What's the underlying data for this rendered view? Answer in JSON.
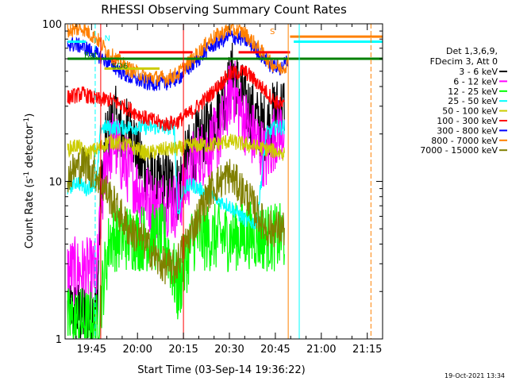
{
  "chart_data": {
    "type": "line",
    "title": "RHESSI Observing Summary Count Rates",
    "xlabel": "Start Time (03-Sep-14 19:36:22)",
    "ylabel_parts": [
      "Count Rate (s",
      "-1",
      " detector",
      "-1",
      ")"
    ],
    "y_scale": "log",
    "ylim": [
      1,
      100
    ],
    "y_tick_labels": [
      "1",
      "10",
      "100"
    ],
    "x_range_minutes": [
      "19:36:22",
      "21:20:00"
    ],
    "x_tick_labels": [
      "19:45",
      "20:00",
      "20:15",
      "20:30",
      "20:45",
      "21:00",
      "21:15"
    ],
    "legend": {
      "header": [
        "Det 1,3,6,9,",
        "FDecim 3, Att 0"
      ],
      "entries": [
        {
          "name": "3 - 6 keV",
          "color": "#000000"
        },
        {
          "name": "6 - 12 keV",
          "color": "#ff00ff"
        },
        {
          "name": "12 - 25 keV",
          "color": "#00ff00"
        },
        {
          "name": "25 - 50 keV",
          "color": "#00ffff"
        },
        {
          "name": "50 - 100 keV",
          "color": "#cccc00"
        },
        {
          "name": "100 - 300 keV",
          "color": "#ff0000"
        },
        {
          "name": "300 - 800 keV",
          "color": "#0000ff"
        },
        {
          "name": "800 - 7000 keV",
          "color": "#ff8000"
        },
        {
          "name": "7000 - 15000 keV",
          "color": "#808000"
        }
      ]
    },
    "series": [
      {
        "name": "3 - 6 keV",
        "color": "#000000",
        "points": [
          [
            19.62,
            1.5
          ],
          [
            19.72,
            1.4
          ],
          [
            19.78,
            1.6
          ],
          [
            19.8,
            8
          ],
          [
            19.83,
            18
          ],
          [
            19.87,
            26
          ],
          [
            19.92,
            20
          ],
          [
            19.97,
            22
          ],
          [
            20.0,
            14
          ],
          [
            20.05,
            12
          ],
          [
            20.1,
            9
          ],
          [
            20.15,
            10
          ],
          [
            20.22,
            9
          ],
          [
            20.25,
            12
          ],
          [
            20.3,
            16
          ],
          [
            20.35,
            19
          ],
          [
            20.4,
            22
          ],
          [
            20.45,
            30
          ],
          [
            20.5,
            40
          ],
          [
            20.52,
            50
          ],
          [
            20.55,
            38
          ],
          [
            20.6,
            30
          ],
          [
            20.65,
            24
          ],
          [
            20.7,
            22
          ],
          [
            20.75,
            28
          ],
          [
            20.8,
            30
          ]
        ]
      },
      {
        "name": "6 - 12 keV",
        "color": "#ff00ff",
        "points": [
          [
            19.62,
            2.7
          ],
          [
            19.72,
            2.7
          ],
          [
            19.78,
            2.6
          ],
          [
            19.8,
            6
          ],
          [
            19.83,
            14
          ],
          [
            19.87,
            18
          ],
          [
            19.92,
            13
          ],
          [
            19.97,
            11
          ],
          [
            20.0,
            9
          ],
          [
            20.05,
            8
          ],
          [
            20.1,
            7
          ],
          [
            20.15,
            7.5
          ],
          [
            20.22,
            7
          ],
          [
            20.25,
            9
          ],
          [
            20.3,
            13
          ],
          [
            20.35,
            15
          ],
          [
            20.4,
            17
          ],
          [
            20.45,
            20
          ],
          [
            20.5,
            35
          ],
          [
            20.52,
            40
          ],
          [
            20.55,
            30
          ],
          [
            20.6,
            22
          ],
          [
            20.65,
            18
          ],
          [
            20.7,
            14
          ],
          [
            20.75,
            20
          ],
          [
            20.8,
            22
          ]
        ]
      },
      {
        "name": "12 - 25 keV",
        "color": "#00ff00",
        "points": [
          [
            19.62,
            1.3
          ],
          [
            19.7,
            1.3
          ],
          [
            19.78,
            1.2
          ],
          [
            19.85,
            4.4
          ],
          [
            19.95,
            4.4
          ],
          [
            20.05,
            4.4
          ],
          [
            20.15,
            4.4
          ],
          [
            20.22,
            2.0
          ],
          [
            20.3,
            4.4
          ],
          [
            20.4,
            4.4
          ],
          [
            20.5,
            4.4
          ],
          [
            20.6,
            4.6
          ],
          [
            20.7,
            4.4
          ],
          [
            20.8,
            4.4
          ]
        ]
      },
      {
        "name": "25 - 50 keV",
        "color": "#00ffff",
        "points": [
          [
            19.62,
            9
          ],
          [
            19.67,
            10
          ],
          [
            19.72,
            9
          ],
          [
            19.78,
            10
          ],
          [
            19.8,
            22
          ],
          [
            19.9,
            22
          ],
          [
            20.0,
            22
          ],
          [
            20.1,
            22
          ],
          [
            20.2,
            22
          ],
          [
            20.22,
            6
          ],
          [
            20.25,
            9
          ],
          [
            20.3,
            9.5
          ],
          [
            20.4,
            8
          ],
          [
            20.5,
            7
          ],
          [
            20.6,
            5.5
          ],
          [
            20.65,
            5.5
          ],
          [
            20.7,
            20
          ],
          [
            20.75,
            22
          ],
          [
            20.8,
            22
          ]
        ]
      },
      {
        "name": "50 - 100 keV",
        "color": "#cccc00",
        "points": [
          [
            19.62,
            16
          ],
          [
            19.67,
            17
          ],
          [
            19.72,
            15
          ],
          [
            19.78,
            16
          ],
          [
            19.85,
            18
          ],
          [
            19.95,
            17
          ],
          [
            20.05,
            15
          ],
          [
            20.15,
            16
          ],
          [
            20.22,
            16
          ],
          [
            20.3,
            17
          ],
          [
            20.4,
            17
          ],
          [
            20.5,
            18
          ],
          [
            20.6,
            17
          ],
          [
            20.7,
            16
          ],
          [
            20.8,
            15
          ]
        ]
      },
      {
        "name": "100 - 300 keV",
        "color": "#ff0000",
        "points": [
          [
            19.62,
            34
          ],
          [
            19.7,
            36
          ],
          [
            19.78,
            33
          ],
          [
            19.85,
            33
          ],
          [
            19.95,
            29
          ],
          [
            20.05,
            25
          ],
          [
            20.15,
            23
          ],
          [
            20.22,
            24
          ],
          [
            20.3,
            28
          ],
          [
            20.4,
            36
          ],
          [
            20.5,
            48
          ],
          [
            20.58,
            50
          ],
          [
            20.62,
            46
          ],
          [
            20.7,
            37
          ],
          [
            20.75,
            32
          ],
          [
            20.8,
            30
          ]
        ]
      },
      {
        "name": "300 - 800 keV",
        "color": "#0000ff",
        "points": [
          [
            19.62,
            75
          ],
          [
            19.7,
            72
          ],
          [
            19.78,
            64
          ],
          [
            19.85,
            56
          ],
          [
            19.95,
            46
          ],
          [
            20.05,
            42
          ],
          [
            20.15,
            42
          ],
          [
            20.22,
            45
          ],
          [
            20.3,
            55
          ],
          [
            20.4,
            72
          ],
          [
            20.5,
            83
          ],
          [
            20.58,
            80
          ],
          [
            20.65,
            68
          ],
          [
            20.72,
            55
          ],
          [
            20.78,
            52
          ],
          [
            20.82,
            60
          ]
        ]
      },
      {
        "name": "800 - 7000 keV",
        "color": "#ff8000",
        "points": [
          [
            19.62,
            90
          ],
          [
            19.7,
            94
          ],
          [
            19.78,
            80
          ],
          [
            19.85,
            64
          ],
          [
            19.95,
            52
          ],
          [
            20.05,
            46
          ],
          [
            20.15,
            45
          ],
          [
            20.22,
            48
          ],
          [
            20.3,
            60
          ],
          [
            20.4,
            80
          ],
          [
            20.5,
            93
          ],
          [
            20.58,
            88
          ],
          [
            20.65,
            72
          ],
          [
            20.72,
            57
          ],
          [
            20.78,
            52
          ],
          [
            20.82,
            56
          ]
        ]
      },
      {
        "name": "7000 - 15000 keV",
        "color": "#808000",
        "points": [
          [
            19.62,
            11
          ],
          [
            19.7,
            13
          ],
          [
            19.78,
            11
          ],
          [
            19.85,
            8
          ],
          [
            19.95,
            5
          ],
          [
            20.05,
            4
          ],
          [
            20.12,
            3
          ],
          [
            20.2,
            2.8
          ],
          [
            20.3,
            5
          ],
          [
            20.4,
            9
          ],
          [
            20.5,
            11
          ],
          [
            20.6,
            8
          ],
          [
            20.7,
            5
          ],
          [
            20.8,
            5
          ]
        ]
      }
    ],
    "flag_lines": [
      {
        "color": "#ff8000",
        "y": 83,
        "x": [
          20.83,
          21.47
        ]
      },
      {
        "color": "#00ffff",
        "y": 77,
        "x": [
          20.85,
          21.47
        ]
      },
      {
        "color": "#008000",
        "y": 60,
        "x": [
          19.62,
          21.47
        ]
      },
      {
        "color": "#ff0000",
        "y": 66,
        "x": [
          19.9,
          20.3
        ]
      },
      {
        "color": "#ff0000",
        "y": 66,
        "x": [
          20.55,
          20.83
        ]
      },
      {
        "color": "#cccc00",
        "y": 52,
        "x": [
          19.82,
          20.12
        ]
      },
      {
        "color": "#00ffff",
        "y": 77,
        "x": [
          19.62,
          19.72
        ]
      }
    ],
    "annotations": [
      {
        "text": "S",
        "color": "#ff8000",
        "x": 19.64,
        "y": 92
      },
      {
        "text": "N",
        "color": "#00ffff",
        "x": 19.82,
        "y": 78
      },
      {
        "text": "Rat",
        "color": "#008000",
        "x": 19.71,
        "y": 61
      },
      {
        "text": "S",
        "color": "#ff0000",
        "x": 19.86,
        "y": 55
      },
      {
        "text": "SD6",
        "color": "#008000",
        "x": 19.86,
        "y": 52
      },
      {
        "text": "S",
        "color": "#ff8000",
        "x": 20.72,
        "y": 86
      }
    ],
    "vertical_markers": [
      {
        "x": 19.77,
        "color": "#00ffff",
        "style": "dashed"
      },
      {
        "x": 19.8,
        "color": "#ff0000",
        "style": "solid"
      },
      {
        "x": 20.25,
        "color": "#ff0000",
        "style": "solid"
      },
      {
        "x": 20.82,
        "color": "#ff8000",
        "style": "solid"
      },
      {
        "x": 20.88,
        "color": "#00ffff",
        "style": "solid"
      },
      {
        "x": 21.27,
        "color": "#ff8000",
        "style": "dashed"
      }
    ],
    "grid": false
  },
  "footer": {
    "date_stamp": "19-Oct-2021 13:34"
  }
}
